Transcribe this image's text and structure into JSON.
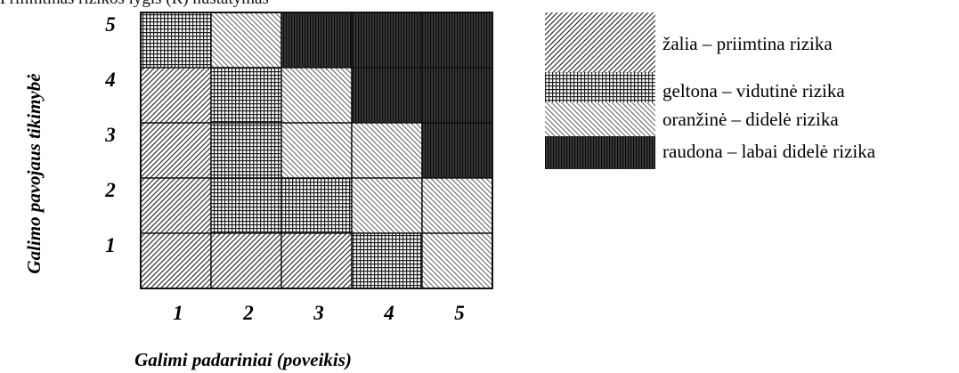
{
  "header": {
    "cut_text": "Prilimtinas rizikos lygis (R) nustatymas"
  },
  "chart_data": {
    "type": "heatmap",
    "title": "",
    "xlabel": "Galimi padariniai (poveikis)",
    "ylabel": "Galimo pavojaus tikimybė",
    "x_ticks": [
      "1",
      "2",
      "3",
      "4",
      "5"
    ],
    "y_ticks": [
      "1",
      "2",
      "3",
      "4",
      "5"
    ],
    "cells": [
      {
        "x": 1,
        "y": 5,
        "level": "geltona"
      },
      {
        "x": 2,
        "y": 5,
        "level": "oranzine"
      },
      {
        "x": 3,
        "y": 5,
        "level": "raudona"
      },
      {
        "x": 4,
        "y": 5,
        "level": "raudona"
      },
      {
        "x": 5,
        "y": 5,
        "level": "raudona"
      },
      {
        "x": 1,
        "y": 4,
        "level": "zalia"
      },
      {
        "x": 2,
        "y": 4,
        "level": "geltona"
      },
      {
        "x": 3,
        "y": 4,
        "level": "oranzine"
      },
      {
        "x": 4,
        "y": 4,
        "level": "raudona"
      },
      {
        "x": 5,
        "y": 4,
        "level": "raudona"
      },
      {
        "x": 1,
        "y": 3,
        "level": "zalia"
      },
      {
        "x": 2,
        "y": 3,
        "level": "geltona"
      },
      {
        "x": 3,
        "y": 3,
        "level": "oranzine"
      },
      {
        "x": 4,
        "y": 3,
        "level": "oranzine"
      },
      {
        "x": 5,
        "y": 3,
        "level": "raudona"
      },
      {
        "x": 1,
        "y": 2,
        "level": "zalia"
      },
      {
        "x": 2,
        "y": 2,
        "level": "geltona"
      },
      {
        "x": 3,
        "y": 2,
        "level": "geltona"
      },
      {
        "x": 4,
        "y": 2,
        "level": "oranzine"
      },
      {
        "x": 5,
        "y": 2,
        "level": "oranzine"
      },
      {
        "x": 1,
        "y": 1,
        "level": "zalia"
      },
      {
        "x": 2,
        "y": 1,
        "level": "zalia"
      },
      {
        "x": 3,
        "y": 1,
        "level": "zalia"
      },
      {
        "x": 4,
        "y": 1,
        "level": "geltona"
      },
      {
        "x": 5,
        "y": 1,
        "level": "oranzine"
      }
    ],
    "legend_position": "right",
    "legend": [
      {
        "level": "zalia",
        "label": "žalia – priimtina rizika"
      },
      {
        "level": "geltona",
        "label": "geltona  – vidutinė rizika"
      },
      {
        "level": "oranzine",
        "label": "oranžinė  – didelė  rizika"
      },
      {
        "level": "raudona",
        "label": "raudona –  labai didelė rizika"
      }
    ]
  }
}
